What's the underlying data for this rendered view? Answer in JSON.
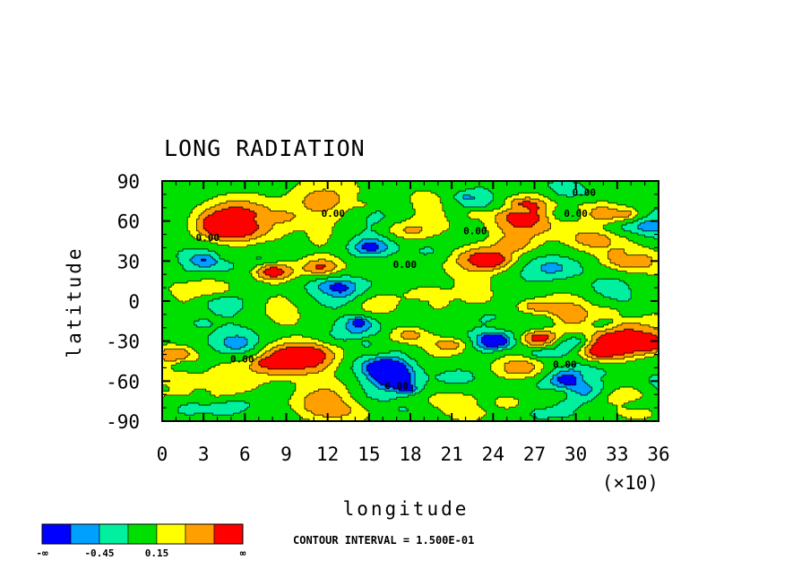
{
  "chart_data": {
    "type": "heatmap",
    "title": "LONG RADIATION",
    "xlabel": "longitude",
    "ylabel": "latitude",
    "x_multiplier": "(×10)",
    "xlim": [
      0,
      36
    ],
    "ylim": [
      -90,
      90
    ],
    "x_ticks": [
      "0",
      "3",
      "6",
      "9",
      "12",
      "15",
      "18",
      "21",
      "24",
      "27",
      "30",
      "33",
      "36"
    ],
    "y_ticks": [
      "90",
      "60",
      "30",
      "0",
      "-30",
      "-60",
      "-90"
    ],
    "contour_interval_text": "CONTOUR INTERVAL = 1.500E-01",
    "contour_labels": [
      {
        "text": "0.00",
        "lon": 30.6,
        "lat": 79
      },
      {
        "text": "0.00",
        "lon": 12.4,
        "lat": 63
      },
      {
        "text": "0.00",
        "lon": 30.0,
        "lat": 63
      },
      {
        "text": "0.00",
        "lon": 3.3,
        "lat": 45
      },
      {
        "text": "0.00",
        "lon": 22.7,
        "lat": 50
      },
      {
        "text": "0.00",
        "lon": 17.6,
        "lat": 25
      },
      {
        "text": "0.00",
        "lon": 5.8,
        "lat": -46
      },
      {
        "text": "0.00",
        "lon": 17.0,
        "lat": -66
      },
      {
        "text": "0.00",
        "lon": 29.2,
        "lat": -50
      }
    ],
    "colorbar": {
      "colors": [
        "#0000ff",
        "#00a0ff",
        "#00f0a0",
        "#00e000",
        "#ffff00",
        "#ffa000",
        "#ff0000"
      ],
      "labels": [
        "-∞",
        "-0.45",
        "0.15",
        "∞"
      ]
    }
  }
}
